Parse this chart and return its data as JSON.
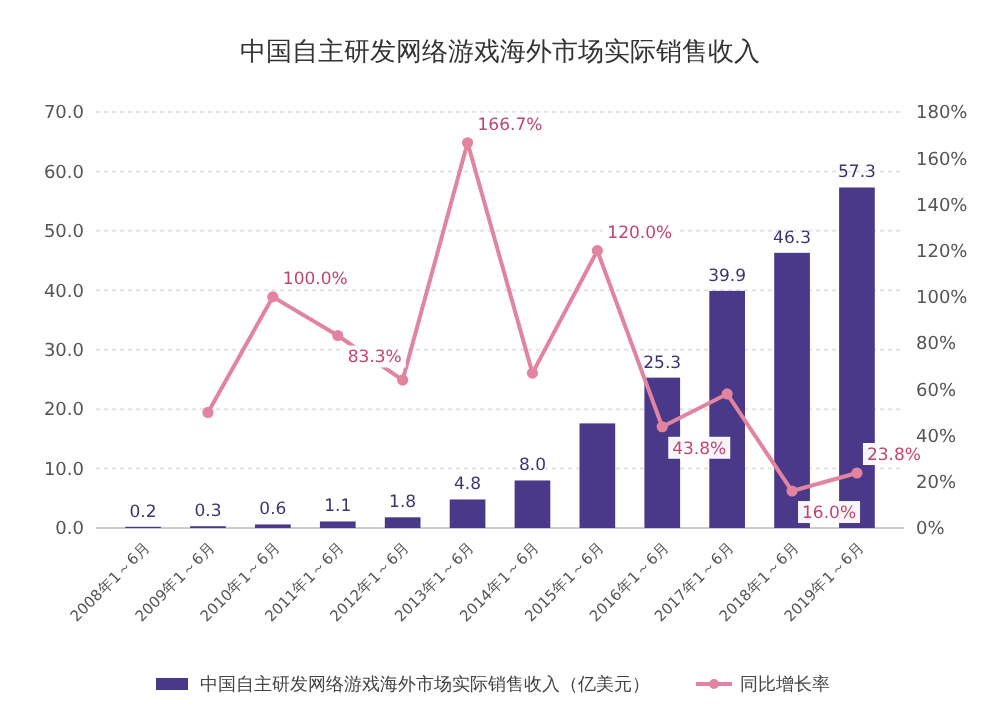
{
  "chart_data": {
    "type": "bar",
    "title": "中国自主研发网络游戏海外市场实际销售收入",
    "categories": [
      "2008年1～6月",
      "2009年1～6月",
      "2010年1～6月",
      "2011年1～6月",
      "2012年1～6月",
      "2013年1～6月",
      "2014年1～6月",
      "2015年1～6月",
      "2016年1～6月",
      "2017年1～6月",
      "2018年1～6月",
      "2019年1～6月"
    ],
    "series": [
      {
        "name": "中国自主研发网络游戏海外市场实际销售收入（亿美元）",
        "color": "#4a3889",
        "values": [
          0.2,
          0.3,
          0.6,
          1.1,
          1.8,
          4.8,
          8.0,
          17.6,
          25.3,
          39.9,
          46.3,
          57.3
        ],
        "value_labels": [
          "0.2",
          "0.3",
          "0.6",
          "1.1",
          "1.8",
          "4.8",
          "8.0",
          null,
          "25.3",
          "39.9",
          "46.3",
          "57.3"
        ]
      },
      {
        "name": "同比增长率",
        "type": "line",
        "axis": "y2",
        "color": "#e0849f",
        "values": [
          null,
          50,
          100,
          83.3,
          64,
          166.7,
          67,
          120,
          43.8,
          58,
          16,
          23.8
        ],
        "value_labels": [
          null,
          null,
          "100.0%",
          "83.3%",
          null,
          "166.7%",
          null,
          "120.0%",
          "43.8%",
          null,
          "16.0%",
          "23.8%"
        ]
      }
    ],
    "ylim": [
      0,
      70
    ],
    "yticks": [
      {
        "value": 0,
        "label": "0.0"
      },
      {
        "value": 10,
        "label": "10.0"
      },
      {
        "value": 20,
        "label": "20.0"
      },
      {
        "value": 30,
        "label": "30.0"
      },
      {
        "value": 40,
        "label": "40.0"
      },
      {
        "value": 50,
        "label": "50.0"
      },
      {
        "value": 60,
        "label": "60.0"
      },
      {
        "value": 70,
        "label": "70.0"
      }
    ],
    "y2lim": [
      0,
      180
    ],
    "y2ticks": [
      {
        "value": 0,
        "label": "0%"
      },
      {
        "value": 20,
        "label": "20%"
      },
      {
        "value": 40,
        "label": "40%"
      },
      {
        "value": 60,
        "label": "60%"
      },
      {
        "value": 80,
        "label": "80%"
      },
      {
        "value": 100,
        "label": "100%"
      },
      {
        "value": 120,
        "label": "120%"
      },
      {
        "value": 140,
        "label": "140%"
      },
      {
        "value": 160,
        "label": "160%"
      },
      {
        "value": 180,
        "label": "180%"
      }
    ],
    "grid": "y",
    "legend": "bottom",
    "marker": "circle"
  }
}
